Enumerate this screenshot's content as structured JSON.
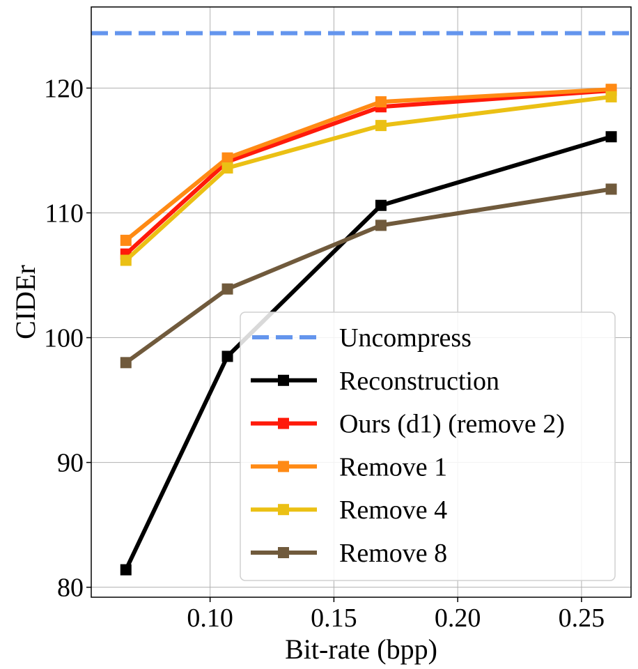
{
  "chart_data": {
    "type": "line",
    "title": "",
    "xlabel": "Bit-rate (bpp)",
    "ylabel": "CIDEr",
    "xlim": [
      0.052,
      0.27
    ],
    "ylim": [
      79.2,
      126.5
    ],
    "xticks": [
      0.1,
      0.15,
      0.2,
      0.25
    ],
    "xtick_labels": [
      "0.10",
      "0.15",
      "0.20",
      "0.25"
    ],
    "yticks": [
      80,
      90,
      100,
      110,
      120
    ],
    "ytick_labels": [
      "80",
      "90",
      "100",
      "110",
      "120"
    ],
    "grid": true,
    "legend_position": "lower-right",
    "baseline": {
      "name": "Uncompress",
      "value": 124.4,
      "color": "#6495ED",
      "style": "dashed"
    },
    "series": [
      {
        "name": "Reconstruction",
        "color": "#000000",
        "x": [
          0.066,
          0.107,
          0.169,
          0.262
        ],
        "y": [
          81.4,
          98.5,
          110.6,
          116.1
        ]
      },
      {
        "name": "Ours (d1) (remove 2)",
        "color": "#FF1A0A",
        "x": [
          0.066,
          0.107,
          0.169,
          0.262
        ],
        "y": [
          106.7,
          114.1,
          118.5,
          119.8
        ]
      },
      {
        "name": "Remove 1",
        "color": "#FF8A14",
        "x": [
          0.066,
          0.107,
          0.169,
          0.262
        ],
        "y": [
          107.8,
          114.4,
          118.9,
          119.9
        ]
      },
      {
        "name": "Remove 4",
        "color": "#EBC014",
        "x": [
          0.066,
          0.107,
          0.169,
          0.262
        ],
        "y": [
          106.2,
          113.6,
          117.0,
          119.3
        ]
      },
      {
        "name": "Remove 8",
        "color": "#705A3C",
        "x": [
          0.066,
          0.107,
          0.169,
          0.262
        ],
        "y": [
          98.0,
          103.9,
          109.0,
          111.9
        ]
      }
    ]
  }
}
